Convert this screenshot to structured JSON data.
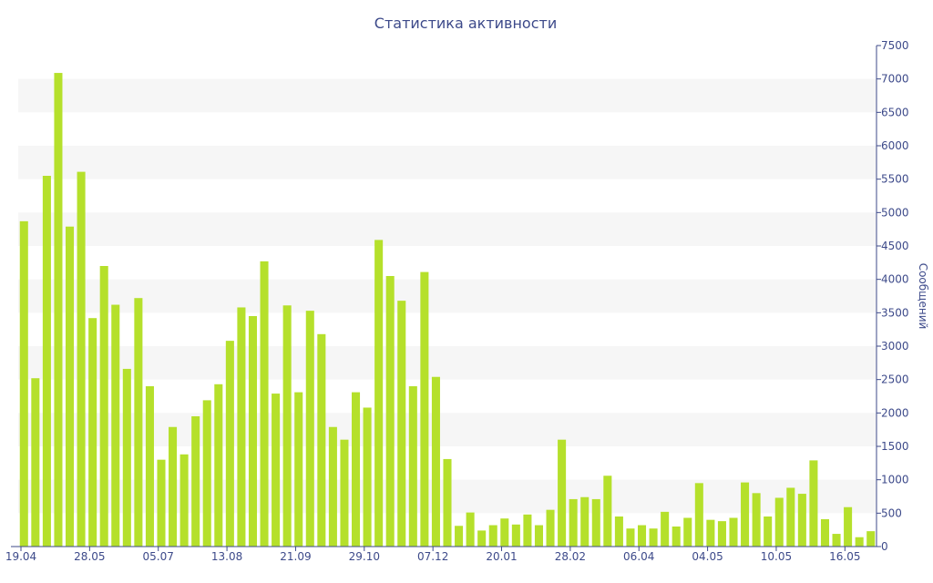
{
  "chart_data": {
    "type": "bar",
    "title": "Статистика активности",
    "ylabel": "Сообщений",
    "xlabel": "",
    "ylim": [
      0,
      7500
    ],
    "y_ticks": [
      0,
      500,
      1000,
      1500,
      2000,
      2500,
      3000,
      3500,
      4000,
      4500,
      5000,
      5500,
      6000,
      6500,
      7000,
      7500
    ],
    "x_tick_labels": [
      {
        "label": "19.04",
        "index": 0
      },
      {
        "label": "28.05",
        "index": 6
      },
      {
        "label": "05.07",
        "index": 12
      },
      {
        "label": "13.08",
        "index": 18
      },
      {
        "label": "21.09",
        "index": 24
      },
      {
        "label": "29.10",
        "index": 30
      },
      {
        "label": "07.12",
        "index": 36
      },
      {
        "label": "20.01",
        "index": 42
      },
      {
        "label": "28.02",
        "index": 48
      },
      {
        "label": "06.04",
        "index": 54
      },
      {
        "label": "04.05",
        "index": 60
      },
      {
        "label": "10.05",
        "index": 66
      },
      {
        "label": "16.05",
        "index": 72
      }
    ],
    "y_axis_position": "right",
    "grid": "alternating horizontal bands",
    "bar_color": "#b5e02b",
    "band_color": "#f6f6f6",
    "text_color": "#3d4a8a",
    "values": [
      4870,
      2520,
      5550,
      7090,
      4790,
      5610,
      3420,
      4200,
      3620,
      2660,
      3720,
      2400,
      1300,
      1790,
      1380,
      1950,
      2190,
      2430,
      3080,
      3580,
      3450,
      4270,
      2290,
      3610,
      2310,
      3530,
      3180,
      1790,
      1600,
      2310,
      2080,
      4590,
      4050,
      3680,
      2400,
      4110,
      2540,
      1310,
      310,
      510,
      240,
      320,
      420,
      330,
      480,
      320,
      550,
      1600,
      710,
      740,
      710,
      1060,
      450,
      270,
      320,
      270,
      520,
      300,
      430,
      950,
      400,
      380,
      430,
      960,
      800,
      450,
      730,
      880,
      790,
      1290,
      410,
      190,
      590,
      140,
      230
    ]
  }
}
